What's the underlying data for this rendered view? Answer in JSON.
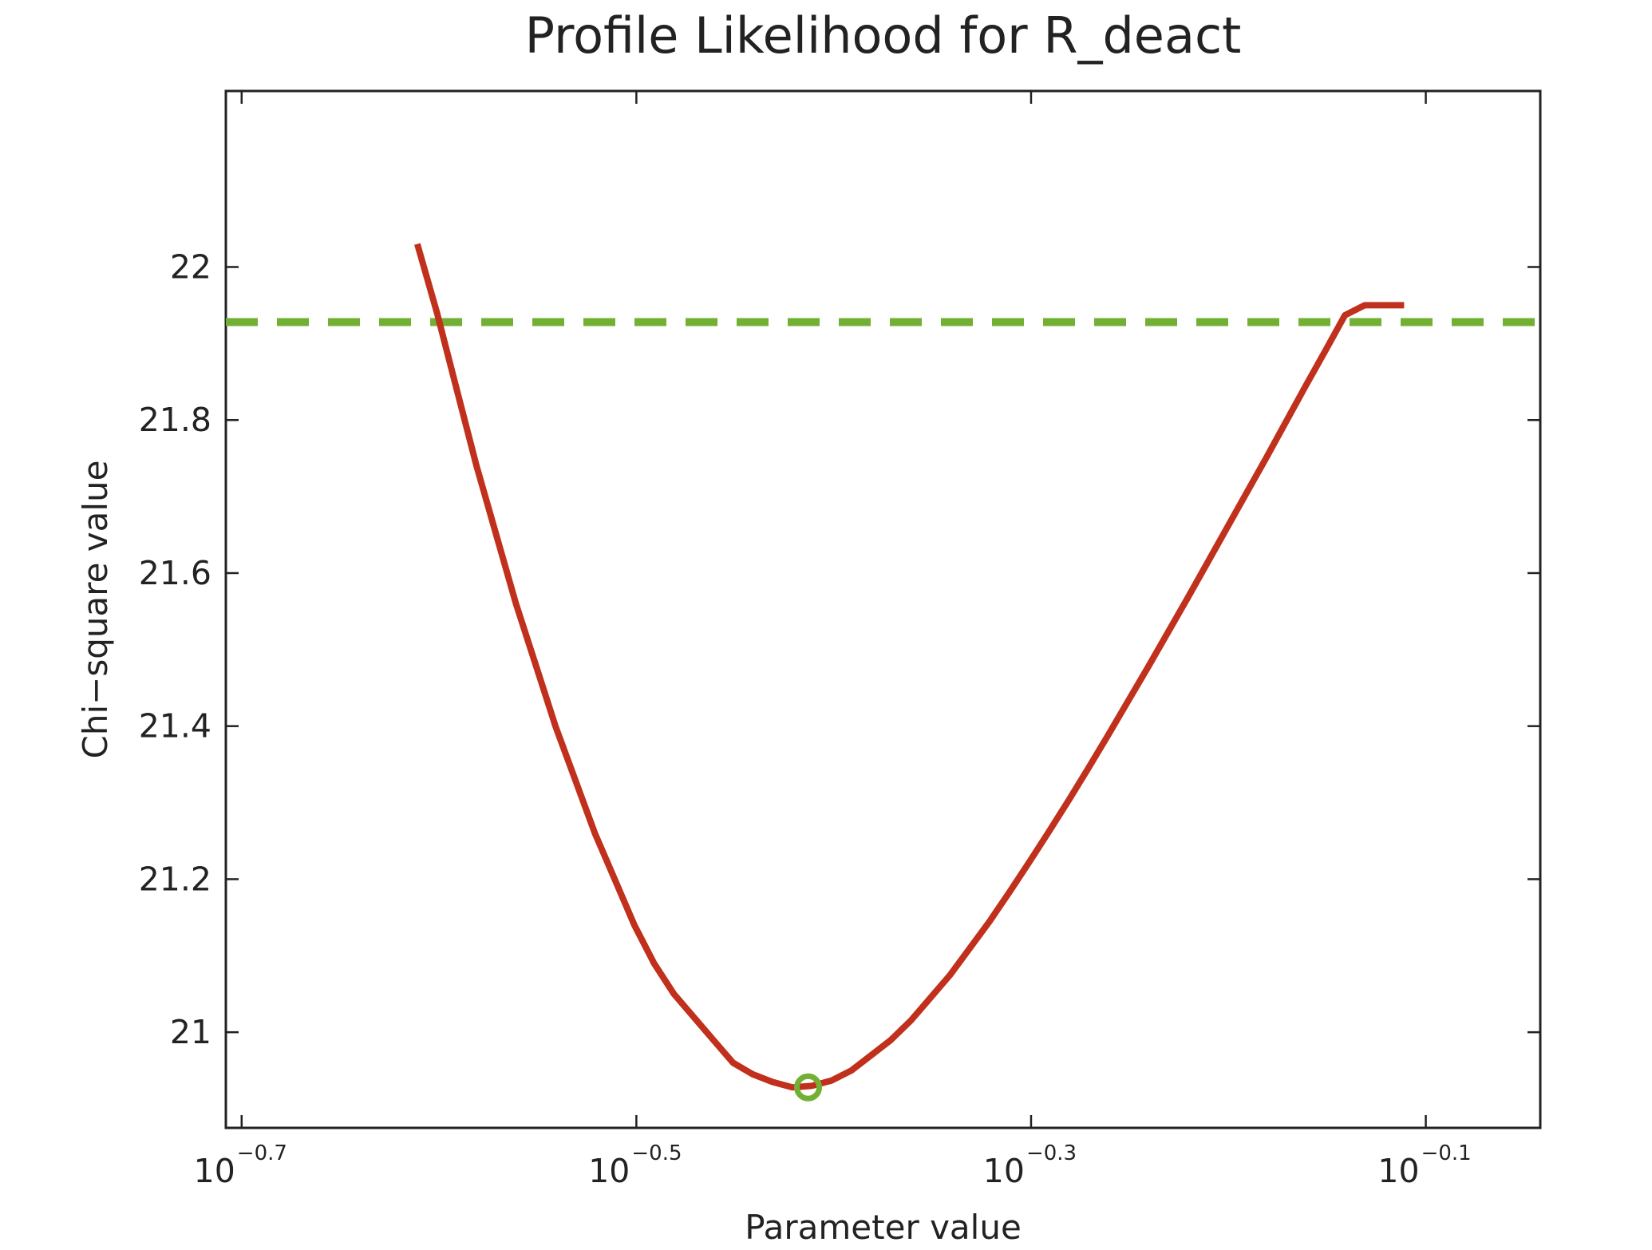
{
  "chart_data": {
    "type": "line",
    "title": "Profile Likelihood for R_deact",
    "xlabel": "Parameter value",
    "ylabel": "Chi−square value",
    "x_scale": "log10",
    "xlim_exponent": [
      -0.708,
      -0.042
    ],
    "ylim": [
      20.875,
      22.23
    ],
    "x_ticks": [
      {
        "base": "10",
        "exponent": "−0.7",
        "value": -0.7
      },
      {
        "base": "10",
        "exponent": "−0.5",
        "value": -0.5
      },
      {
        "base": "10",
        "exponent": "−0.3",
        "value": -0.3
      },
      {
        "base": "10",
        "exponent": "−0.1",
        "value": -0.1
      }
    ],
    "y_ticks": [
      {
        "label": "21",
        "value": 21.0
      },
      {
        "label": "21.2",
        "value": 21.2
      },
      {
        "label": "21.4",
        "value": 21.4
      },
      {
        "label": "21.6",
        "value": 21.6
      },
      {
        "label": "21.8",
        "value": 21.8
      },
      {
        "label": "22",
        "value": 22.0
      }
    ],
    "grid": false,
    "series": [
      {
        "color": "#c0301c",
        "x_log10": [
          -0.611,
          -0.601,
          -0.591,
          -0.581,
          -0.571,
          -0.561,
          -0.551,
          -0.541,
          -0.531,
          -0.521,
          -0.511,
          -0.501,
          -0.491,
          -0.481,
          -0.471,
          -0.461,
          -0.451,
          -0.441,
          -0.431,
          -0.421,
          -0.411,
          -0.401,
          -0.391,
          -0.381,
          -0.371,
          -0.361,
          -0.351,
          -0.341,
          -0.331,
          -0.321,
          -0.311,
          -0.301,
          -0.291,
          -0.281,
          -0.271,
          -0.261,
          -0.251,
          -0.241,
          -0.231,
          -0.221,
          -0.211,
          -0.201,
          -0.191,
          -0.181,
          -0.171,
          -0.161,
          -0.151,
          -0.141,
          -0.131,
          -0.121,
          -0.111
        ],
        "y": [
          22.03,
          21.94,
          21.84,
          21.74,
          21.65,
          21.56,
          21.48,
          21.4,
          21.33,
          21.26,
          21.2,
          21.14,
          21.09,
          21.05,
          21.02,
          20.99,
          20.96,
          20.945,
          20.935,
          20.928,
          20.93,
          20.937,
          20.95,
          20.97,
          20.99,
          21.015,
          21.045,
          21.075,
          21.11,
          21.145,
          21.183,
          21.222,
          21.262,
          21.303,
          21.345,
          21.388,
          21.432,
          21.476,
          21.521,
          21.566,
          21.612,
          21.658,
          21.704,
          21.75,
          21.797,
          21.844,
          21.89,
          21.937,
          21.95,
          21.95,
          21.95
        ]
      }
    ],
    "threshold": {
      "y": 21.928,
      "color": "#72b034",
      "style": "dashed"
    },
    "optimum_marker": {
      "x_log10": -0.413,
      "y": 20.928,
      "color": "#72b034",
      "marker": "circle"
    }
  }
}
